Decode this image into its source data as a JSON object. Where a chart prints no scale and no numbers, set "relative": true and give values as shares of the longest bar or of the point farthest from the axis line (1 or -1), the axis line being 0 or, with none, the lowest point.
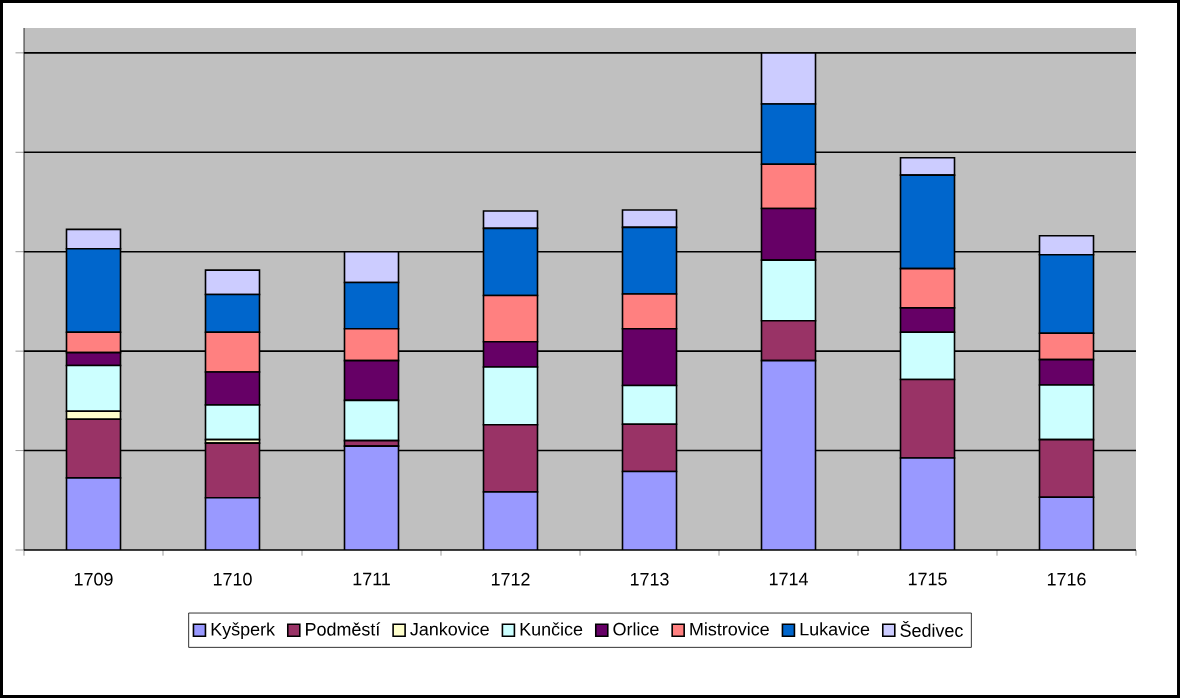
{
  "chart_data": {
    "type": "bar",
    "stacked": true,
    "relative": true,
    "grid": "y",
    "legend": "bottom",
    "categories": [
      "1709",
      "1710",
      "1711",
      "1712",
      "1713",
      "1714",
      "1715",
      "1716"
    ],
    "series": [
      {
        "name": "Kyšperk",
        "color": "#9999ff",
        "values": [
          0.145,
          0.105,
          0.209,
          0.117,
          0.158,
          0.381,
          0.185,
          0.106
        ]
      },
      {
        "name": "Podměstí",
        "color": "#993366",
        "values": [
          0.118,
          0.11,
          0.011,
          0.135,
          0.095,
          0.08,
          0.158,
          0.116
        ]
      },
      {
        "name": "Jankovice",
        "color": "#ffffcc",
        "values": [
          0.016,
          0.007,
          null,
          0,
          0,
          0,
          0,
          0
        ]
      },
      {
        "name": "Kunčice",
        "color": "#ccffff",
        "values": [
          0.092,
          0.07,
          0.081,
          0.116,
          0.078,
          0.122,
          0.095,
          0.11
        ]
      },
      {
        "name": "Orlice",
        "color": "#660066",
        "values": [
          0.026,
          0.066,
          0.08,
          0.051,
          0.114,
          0.104,
          0.049,
          0.051
        ]
      },
      {
        "name": "Mistrovice",
        "color": "#ff8080",
        "values": [
          0.041,
          0.08,
          0.064,
          0.093,
          0.07,
          0.089,
          0.079,
          0.053
        ]
      },
      {
        "name": "Lukavice",
        "color": "#0066cc",
        "values": [
          0.168,
          0.076,
          0.093,
          0.135,
          0.134,
          0.121,
          0.188,
          0.158
        ]
      },
      {
        "name": "Šedivec",
        "color": "#ccccff",
        "values": [
          0.039,
          0.049,
          0.062,
          0.035,
          0.035,
          0.103,
          0.035,
          0.038
        ]
      }
    ]
  }
}
